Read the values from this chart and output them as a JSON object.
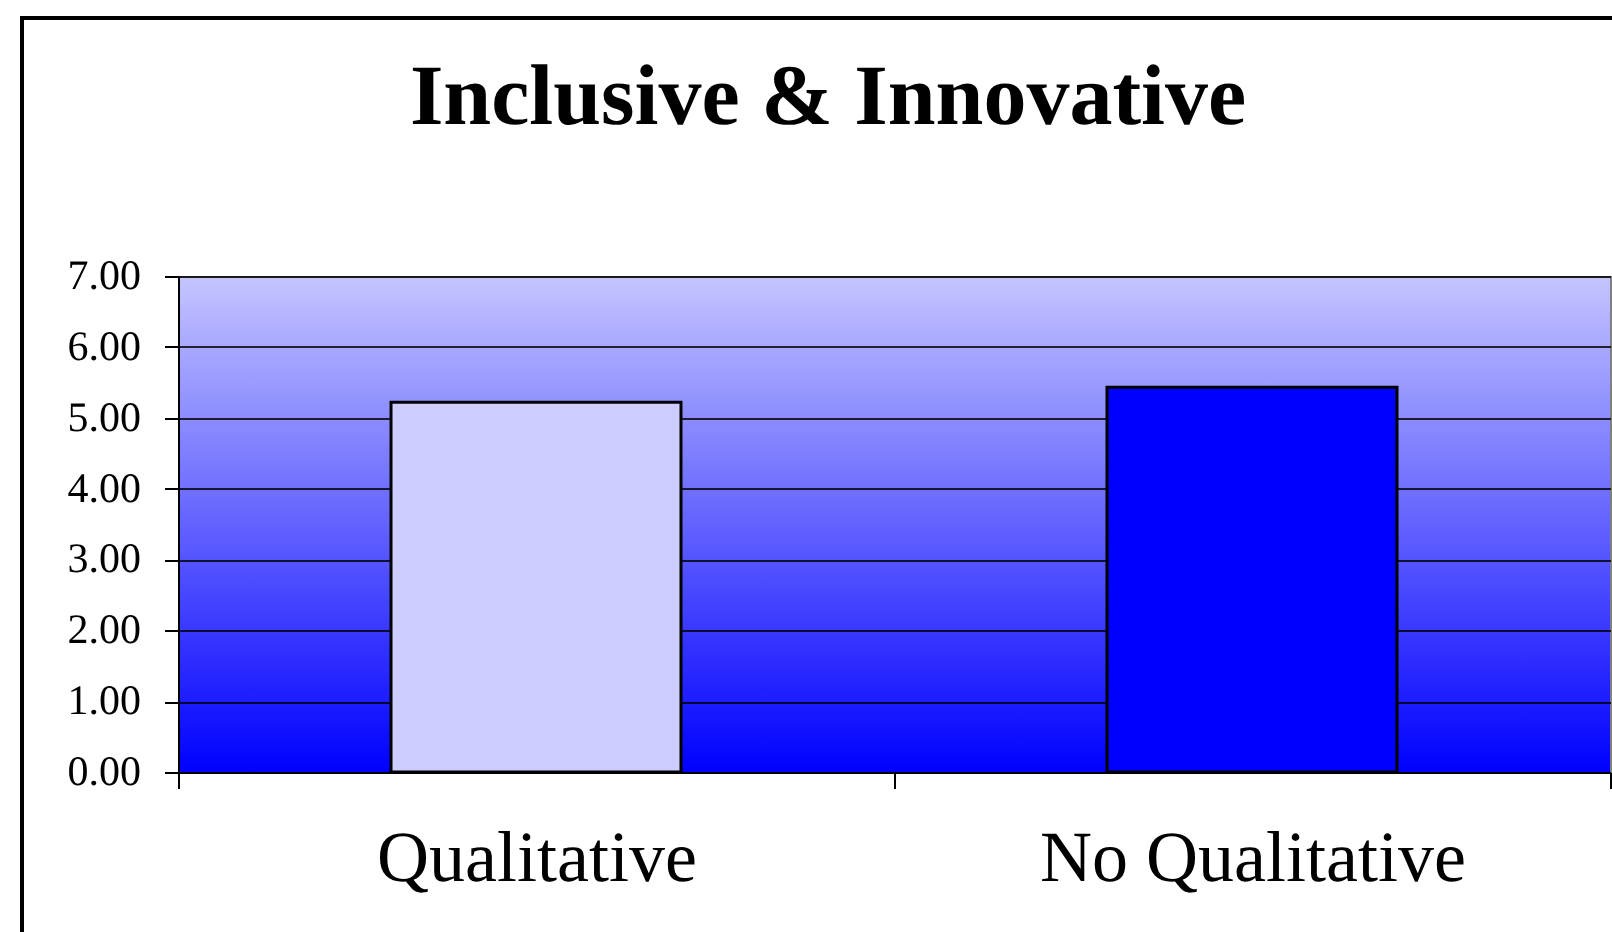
{
  "chart_data": {
    "type": "bar",
    "title": "Inclusive & Innovative",
    "categories": [
      "Qualitative",
      "No Qualitative"
    ],
    "values": [
      5.22,
      5.43
    ],
    "colors": [
      "#ccccff",
      "#0000ff"
    ],
    "ylim": [
      0,
      7
    ],
    "yticks": [
      {
        "value": 0,
        "label": "0.00"
      },
      {
        "value": 1,
        "label": "1.00"
      },
      {
        "value": 2,
        "label": "2.00"
      },
      {
        "value": 3,
        "label": "3.00"
      },
      {
        "value": 4,
        "label": "4.00"
      },
      {
        "value": 5,
        "label": "5.00"
      },
      {
        "value": 6,
        "label": "6.00"
      },
      {
        "value": 7,
        "label": "7.00"
      }
    ],
    "grid": "y"
  }
}
